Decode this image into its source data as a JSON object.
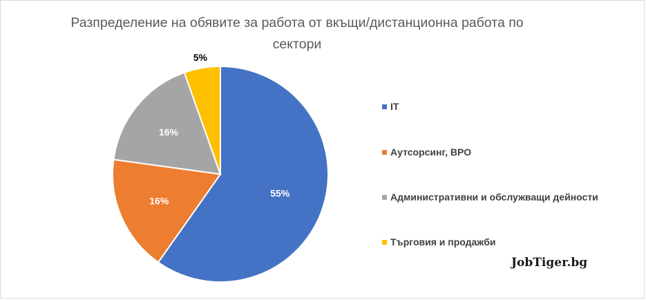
{
  "chart_data": {
    "type": "pie",
    "title": "Разпределение на обявите за работа от вкъщи/дистанционна работа по сектори",
    "slices": [
      {
        "label": "IT",
        "value": 55,
        "display": "55%",
        "color": "#4472C4"
      },
      {
        "label": "Аутсорсинг, BPO",
        "value": 16,
        "display": "16%",
        "color": "#ED7D31"
      },
      {
        "label": "Административни и обслужващи дейности",
        "value": 16,
        "display": "16%",
        "color": "#A5A5A5"
      },
      {
        "label": "Търговия и продажби",
        "value": 5,
        "display": "5%",
        "color": "#FFC000"
      }
    ],
    "legend_position": "right"
  },
  "brand": "JobTiger.bg"
}
